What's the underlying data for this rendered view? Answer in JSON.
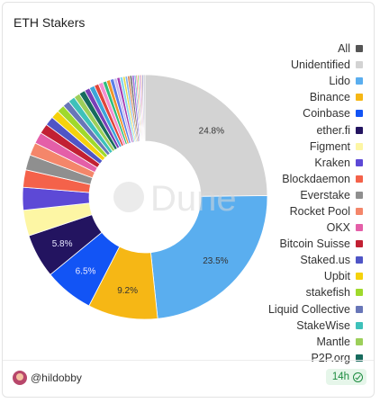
{
  "title": "ETH Stakers",
  "watermark": "Dune",
  "footer": {
    "username": "@hildobby",
    "freshness": "14h"
  },
  "chart_data": {
    "type": "pie",
    "title": "ETH Stakers",
    "legend_position": "right",
    "slices": [
      {
        "label": "Unidentified",
        "value": 24.8,
        "color": "#d3d3d3",
        "show_label": "24.8%"
      },
      {
        "label": "Lido",
        "value": 23.5,
        "color": "#5aaeef",
        "show_label": "23.5%"
      },
      {
        "label": "Binance",
        "value": 9.2,
        "color": "#f6b715",
        "show_label": "9.2%"
      },
      {
        "label": "Coinbase",
        "value": 6.5,
        "color": "#1254f5",
        "show_label": "6.5%"
      },
      {
        "label": "ether.fi",
        "value": 5.8,
        "color": "#231460",
        "show_label": "5.8%"
      },
      {
        "label": "Figment",
        "value": 3.4,
        "color": "#fdf6a4",
        "show_label": ""
      },
      {
        "label": "Kraken",
        "value": 3.0,
        "color": "#5d49d6",
        "show_label": ""
      },
      {
        "label": "Blockdaemon",
        "value": 2.3,
        "color": "#f4624a",
        "show_label": ""
      },
      {
        "label": "Everstake",
        "value": 2.0,
        "color": "#8f8f8f",
        "show_label": ""
      },
      {
        "label": "Rocket Pool",
        "value": 1.7,
        "color": "#f4866a",
        "show_label": ""
      },
      {
        "label": "OKX",
        "value": 1.5,
        "color": "#e45fa8",
        "show_label": ""
      },
      {
        "label": "Bitcoin Suisse",
        "value": 1.3,
        "color": "#c22033",
        "show_label": ""
      },
      {
        "label": "Staked.us",
        "value": 1.2,
        "color": "#4f55c6",
        "show_label": ""
      },
      {
        "label": "Upbit",
        "value": 1.1,
        "color": "#f5d20c",
        "show_label": ""
      },
      {
        "label": "stakefish",
        "value": 1.0,
        "color": "#9fd92c",
        "show_label": ""
      },
      {
        "label": "Liquid Collective",
        "value": 0.9,
        "color": "#6876b8",
        "show_label": ""
      },
      {
        "label": "StakeWise",
        "value": 0.9,
        "color": "#3ec1ba",
        "show_label": ""
      },
      {
        "label": "Mantle",
        "value": 0.8,
        "color": "#9ccf5a",
        "show_label": ""
      },
      {
        "label": "P2P.org",
        "value": 0.8,
        "color": "#176b5e",
        "show_label": ""
      },
      {
        "label": "",
        "value": 0.7,
        "color": "#7a3fb8",
        "show_label": ""
      },
      {
        "label": "",
        "value": 0.7,
        "color": "#3da6d9",
        "show_label": ""
      },
      {
        "label": "",
        "value": 0.6,
        "color": "#e0453a",
        "show_label": ""
      },
      {
        "label": "",
        "value": 0.6,
        "color": "#f28fd0",
        "show_label": ""
      },
      {
        "label": "",
        "value": 0.5,
        "color": "#2fbd7c",
        "show_label": ""
      },
      {
        "label": "",
        "value": 0.5,
        "color": "#f0962b",
        "show_label": ""
      },
      {
        "label": "",
        "value": 0.5,
        "color": "#5b7ee8",
        "show_label": ""
      },
      {
        "label": "",
        "value": 0.4,
        "color": "#c7b8f0",
        "show_label": ""
      },
      {
        "label": "",
        "value": 0.4,
        "color": "#a53bb0",
        "show_label": ""
      },
      {
        "label": "",
        "value": 0.4,
        "color": "#86d6ef",
        "show_label": ""
      },
      {
        "label": "",
        "value": 0.3,
        "color": "#e6d94a",
        "show_label": ""
      },
      {
        "label": "",
        "value": 0.3,
        "color": "#7bb0f0",
        "show_label": ""
      },
      {
        "label": "",
        "value": 0.3,
        "color": "#d98a5a",
        "show_label": ""
      },
      {
        "label": "",
        "value": 0.3,
        "color": "#6a6a6a",
        "show_label": ""
      },
      {
        "label": "",
        "value": 0.3,
        "color": "#9b6ce0",
        "show_label": ""
      },
      {
        "label": "",
        "value": 0.2,
        "color": "#44a4c8",
        "show_label": ""
      },
      {
        "label": "",
        "value": 0.2,
        "color": "#f07b9a",
        "show_label": ""
      },
      {
        "label": "",
        "value": 0.2,
        "color": "#b0d85c",
        "show_label": ""
      },
      {
        "label": "",
        "value": 0.2,
        "color": "#c68cf0",
        "show_label": ""
      },
      {
        "label": "",
        "value": 0.2,
        "color": "#e0a0a0",
        "show_label": ""
      },
      {
        "label": "",
        "value": 0.2,
        "color": "#a0a0d0",
        "show_label": ""
      },
      {
        "label": "",
        "value": 0.2,
        "color": "#c0c0c0",
        "show_label": ""
      }
    ],
    "legend": [
      {
        "label": "All",
        "color": "#555555"
      },
      {
        "label": "Unidentified",
        "color": "#d3d3d3"
      },
      {
        "label": "Lido",
        "color": "#5aaeef"
      },
      {
        "label": "Binance",
        "color": "#f6b715"
      },
      {
        "label": "Coinbase",
        "color": "#1254f5"
      },
      {
        "label": "ether.fi",
        "color": "#231460"
      },
      {
        "label": "Figment",
        "color": "#fdf6a4"
      },
      {
        "label": "Kraken",
        "color": "#5d49d6"
      },
      {
        "label": "Blockdaemon",
        "color": "#f4624a"
      },
      {
        "label": "Everstake",
        "color": "#8f8f8f"
      },
      {
        "label": "Rocket Pool",
        "color": "#f4866a"
      },
      {
        "label": "OKX",
        "color": "#e45fa8"
      },
      {
        "label": "Bitcoin Suisse",
        "color": "#c22033"
      },
      {
        "label": "Staked.us",
        "color": "#4f55c6"
      },
      {
        "label": "Upbit",
        "color": "#f5d20c"
      },
      {
        "label": "stakefish",
        "color": "#9fd92c"
      },
      {
        "label": "Liquid Collective",
        "color": "#6876b8"
      },
      {
        "label": "StakeWise",
        "color": "#3ec1ba"
      },
      {
        "label": "Mantle",
        "color": "#9ccf5a"
      },
      {
        "label": "P2P.org",
        "color": "#176b5e"
      }
    ]
  }
}
